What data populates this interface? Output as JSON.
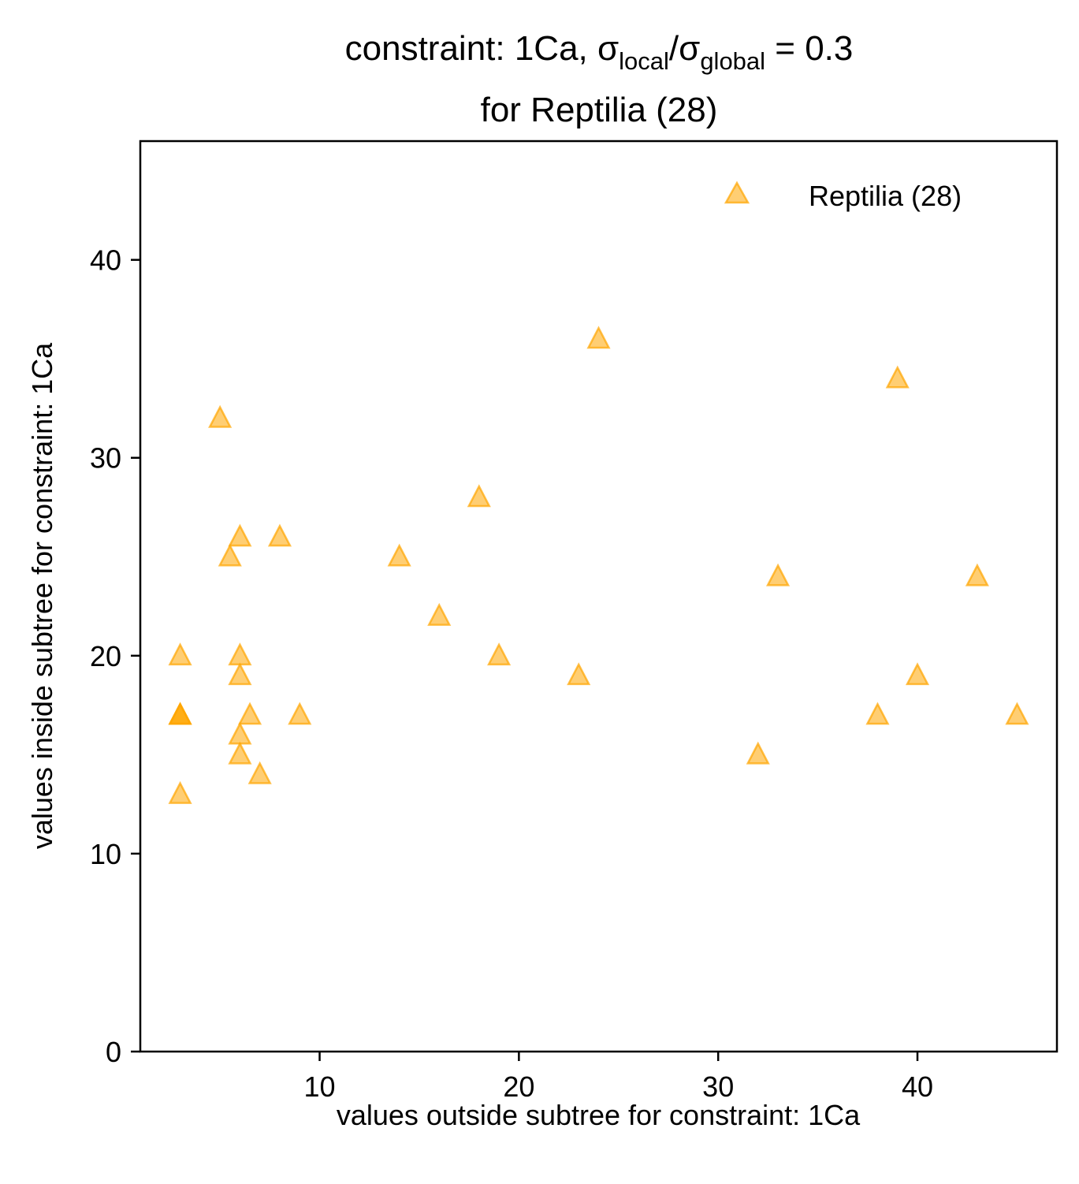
{
  "chart_data": {
    "type": "scatter",
    "title": {
      "prefix": "constraint: 1Ca, σ",
      "sub1": "local",
      "mid": "/σ",
      "sub2": "global",
      "suffix": " =  0.3",
      "line2": "for Reptilia (28)"
    },
    "xlabel": "values outside subtree for constraint: 1Ca",
    "ylabel": "values inside subtree for constraint: 1Ca",
    "xlim": [
      1,
      47
    ],
    "ylim": [
      0,
      46
    ],
    "xticks": [
      10,
      20,
      30,
      40
    ],
    "yticks": [
      0,
      10,
      20,
      30,
      40
    ],
    "grid": false,
    "legend_position": "top-right",
    "series": [
      {
        "name": "Reptilia (28)",
        "marker": "triangle",
        "color": "#FFA500",
        "alpha": 0.55,
        "points": [
          [
            3,
            20
          ],
          [
            3,
            17
          ],
          [
            3,
            17
          ],
          [
            3,
            17
          ],
          [
            3,
            13
          ],
          [
            5,
            32
          ],
          [
            5.5,
            25
          ],
          [
            6,
            26
          ],
          [
            6,
            20
          ],
          [
            6,
            19
          ],
          [
            6,
            16
          ],
          [
            6,
            15
          ],
          [
            6.5,
            17
          ],
          [
            7,
            14
          ],
          [
            8,
            26
          ],
          [
            9,
            17
          ],
          [
            14,
            25
          ],
          [
            16,
            22
          ],
          [
            18,
            28
          ],
          [
            19,
            20
          ],
          [
            23,
            19
          ],
          [
            24,
            36
          ],
          [
            32,
            15
          ],
          [
            33,
            24
          ],
          [
            38,
            17
          ],
          [
            39,
            34
          ],
          [
            40,
            19
          ],
          [
            43,
            24
          ],
          [
            45,
            17
          ]
        ]
      }
    ]
  }
}
